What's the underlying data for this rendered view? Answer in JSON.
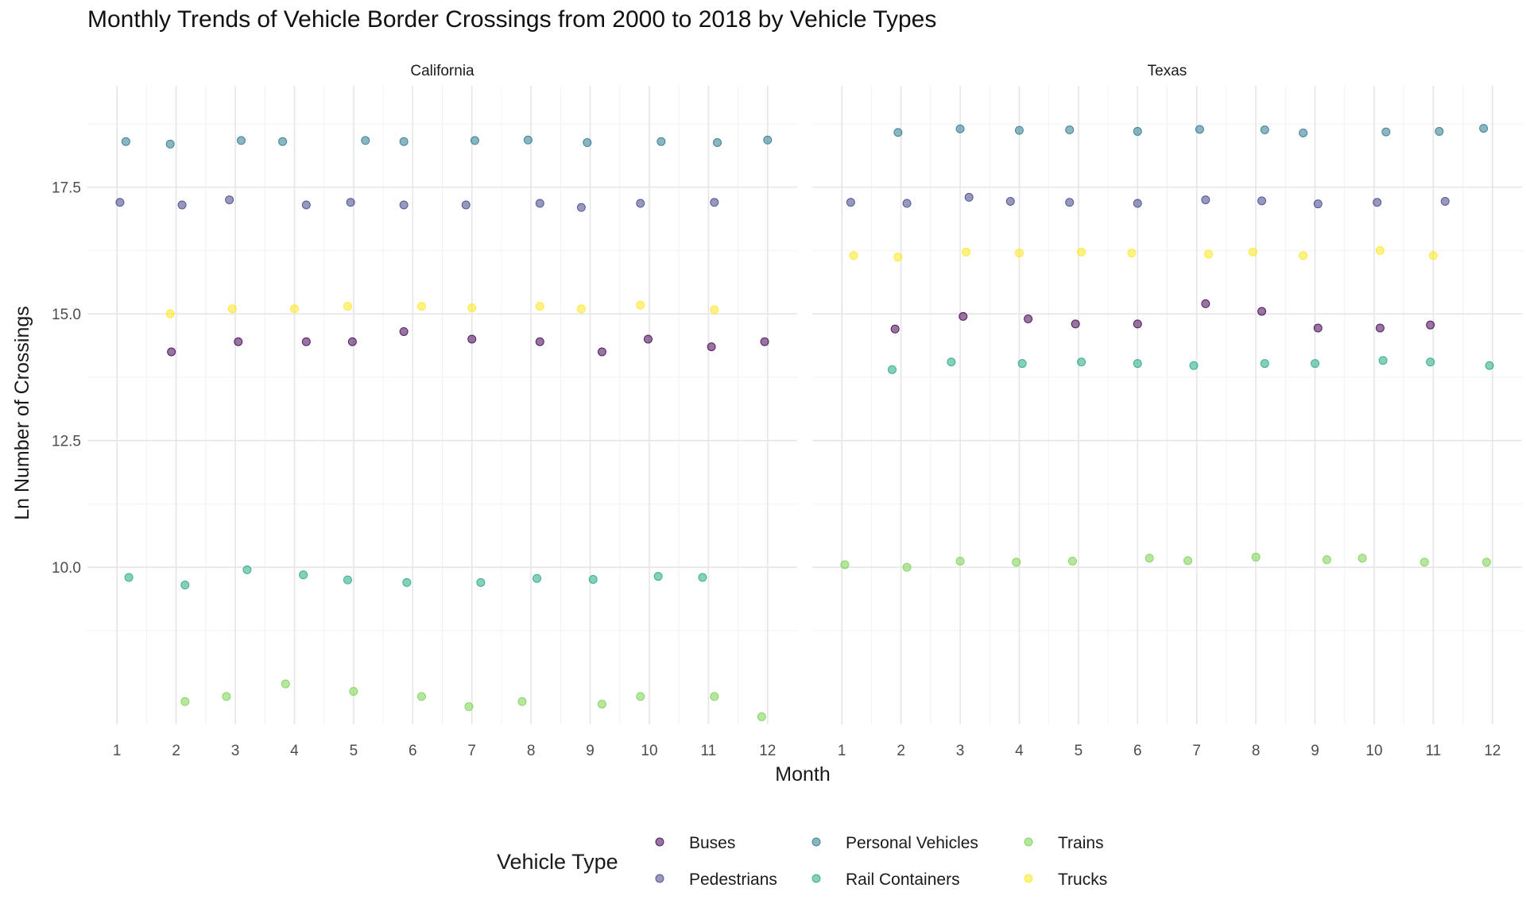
{
  "chart_data": {
    "type": "scatter",
    "title": "Monthly Trends of Vehicle Border Crossings from 2000 to 2018 by Vehicle Types",
    "xlabel": "Month",
    "ylabel": "Ln Number of Crossings",
    "x_ticks": [
      "1",
      "2",
      "3",
      "4",
      "5",
      "6",
      "7",
      "8",
      "9",
      "10",
      "11",
      "12"
    ],
    "xlim": [
      0.5,
      12.5
    ],
    "ylim": [
      6.9,
      19.5
    ],
    "y_ticks": [
      "10.0",
      "12.5",
      "15.0",
      "17.5"
    ],
    "y_tick_values": [
      10,
      12.5,
      15,
      17.5
    ],
    "grid": true,
    "legend_title": "Vehicle Type",
    "legend_position": "bottom",
    "series": [
      {
        "name": "Buses",
        "color": "#440154"
      },
      {
        "name": "Pedestrians",
        "color": "#414487"
      },
      {
        "name": "Personal Vehicles",
        "color": "#2A788E"
      },
      {
        "name": "Rail Containers",
        "color": "#22A884"
      },
      {
        "name": "Trains",
        "color": "#7AD151"
      },
      {
        "name": "Trucks",
        "color": "#FDE725"
      }
    ],
    "panels": [
      {
        "name": "California",
        "points": {
          "Buses": [
            [
              1.92,
              14.25
            ],
            [
              3.05,
              14.45
            ],
            [
              4.2,
              14.45
            ],
            [
              4.98,
              14.45
            ],
            [
              5.85,
              14.65
            ],
            [
              7.0,
              14.5
            ],
            [
              8.15,
              14.45
            ],
            [
              9.2,
              14.25
            ],
            [
              9.98,
              14.5
            ],
            [
              11.05,
              14.35
            ],
            [
              11.95,
              14.45
            ]
          ],
          "Pedestrians": [
            [
              1.05,
              17.2
            ],
            [
              2.1,
              17.15
            ],
            [
              2.9,
              17.25
            ],
            [
              4.2,
              17.15
            ],
            [
              4.95,
              17.2
            ],
            [
              5.85,
              17.15
            ],
            [
              6.9,
              17.15
            ],
            [
              8.15,
              17.18
            ],
            [
              8.85,
              17.1
            ],
            [
              9.85,
              17.18
            ],
            [
              11.1,
              17.2
            ]
          ],
          "Personal Vehicles": [
            [
              1.15,
              18.4
            ],
            [
              1.9,
              18.35
            ],
            [
              3.1,
              18.42
            ],
            [
              3.8,
              18.4
            ],
            [
              5.2,
              18.42
            ],
            [
              5.85,
              18.4
            ],
            [
              7.05,
              18.42
            ],
            [
              7.95,
              18.43
            ],
            [
              8.95,
              18.38
            ],
            [
              10.2,
              18.4
            ],
            [
              11.15,
              18.38
            ],
            [
              12.0,
              18.43
            ]
          ],
          "Rail Containers": [
            [
              1.2,
              9.8
            ],
            [
              2.15,
              9.65
            ],
            [
              3.2,
              9.95
            ],
            [
              4.15,
              9.85
            ],
            [
              4.9,
              9.75
            ],
            [
              5.9,
              9.7
            ],
            [
              7.15,
              9.7
            ],
            [
              8.1,
              9.78
            ],
            [
              9.05,
              9.76
            ],
            [
              10.15,
              9.82
            ],
            [
              10.9,
              9.8
            ]
          ],
          "Trains": [
            [
              2.15,
              7.35
            ],
            [
              2.85,
              7.45
            ],
            [
              3.85,
              7.7
            ],
            [
              5.0,
              7.55
            ],
            [
              6.15,
              7.45
            ],
            [
              6.95,
              7.25
            ],
            [
              7.85,
              7.35
            ],
            [
              9.2,
              7.3
            ],
            [
              9.85,
              7.45
            ],
            [
              11.1,
              7.45
            ],
            [
              11.9,
              7.05
            ]
          ],
          "Trucks": [
            [
              1.9,
              15.0
            ],
            [
              2.95,
              15.1
            ],
            [
              4.0,
              15.1
            ],
            [
              4.9,
              15.15
            ],
            [
              6.15,
              15.15
            ],
            [
              7.0,
              15.12
            ],
            [
              8.15,
              15.15
            ],
            [
              8.85,
              15.1
            ],
            [
              9.85,
              15.17
            ],
            [
              11.1,
              15.08
            ]
          ]
        }
      },
      {
        "name": "Texas",
        "points": {
          "Buses": [
            [
              1.9,
              14.7
            ],
            [
              3.05,
              14.95
            ],
            [
              4.15,
              14.9
            ],
            [
              4.95,
              14.8
            ],
            [
              6.0,
              14.8
            ],
            [
              7.15,
              15.2
            ],
            [
              8.1,
              15.05
            ],
            [
              9.05,
              14.72
            ],
            [
              10.1,
              14.72
            ],
            [
              10.95,
              14.78
            ]
          ],
          "Pedestrians": [
            [
              1.15,
              17.2
            ],
            [
              2.1,
              17.18
            ],
            [
              3.15,
              17.3
            ],
            [
              3.85,
              17.22
            ],
            [
              4.85,
              17.2
            ],
            [
              6.0,
              17.18
            ],
            [
              7.15,
              17.25
            ],
            [
              8.1,
              17.23
            ],
            [
              9.05,
              17.17
            ],
            [
              10.05,
              17.2
            ],
            [
              11.2,
              17.22
            ]
          ],
          "Personal Vehicles": [
            [
              1.95,
              18.58
            ],
            [
              3.0,
              18.65
            ],
            [
              4.0,
              18.62
            ],
            [
              4.85,
              18.63
            ],
            [
              6.0,
              18.6
            ],
            [
              7.05,
              18.64
            ],
            [
              8.15,
              18.63
            ],
            [
              8.8,
              18.57
            ],
            [
              10.2,
              18.59
            ],
            [
              11.1,
              18.6
            ],
            [
              11.85,
              18.66
            ]
          ],
          "Rail Containers": [
            [
              1.85,
              13.9
            ],
            [
              2.85,
              14.05
            ],
            [
              4.05,
              14.02
            ],
            [
              5.05,
              14.05
            ],
            [
              6.0,
              14.02
            ],
            [
              6.95,
              13.98
            ],
            [
              8.15,
              14.02
            ],
            [
              9.0,
              14.02
            ],
            [
              10.15,
              14.08
            ],
            [
              10.95,
              14.05
            ],
            [
              11.95,
              13.98
            ]
          ],
          "Trains": [
            [
              1.05,
              10.05
            ],
            [
              2.1,
              10.0
            ],
            [
              3.0,
              10.12
            ],
            [
              3.95,
              10.1
            ],
            [
              4.9,
              10.12
            ],
            [
              6.2,
              10.18
            ],
            [
              6.85,
              10.13
            ],
            [
              8.0,
              10.2
            ],
            [
              9.2,
              10.15
            ],
            [
              9.8,
              10.18
            ],
            [
              10.85,
              10.1
            ],
            [
              11.9,
              10.1
            ]
          ],
          "Trucks": [
            [
              1.2,
              16.15
            ],
            [
              1.95,
              16.12
            ],
            [
              3.1,
              16.22
            ],
            [
              4.0,
              16.2
            ],
            [
              5.05,
              16.22
            ],
            [
              5.9,
              16.2
            ],
            [
              7.2,
              16.18
            ],
            [
              7.95,
              16.22
            ],
            [
              8.8,
              16.15
            ],
            [
              10.1,
              16.25
            ],
            [
              11.0,
              16.15
            ]
          ]
        }
      }
    ]
  }
}
